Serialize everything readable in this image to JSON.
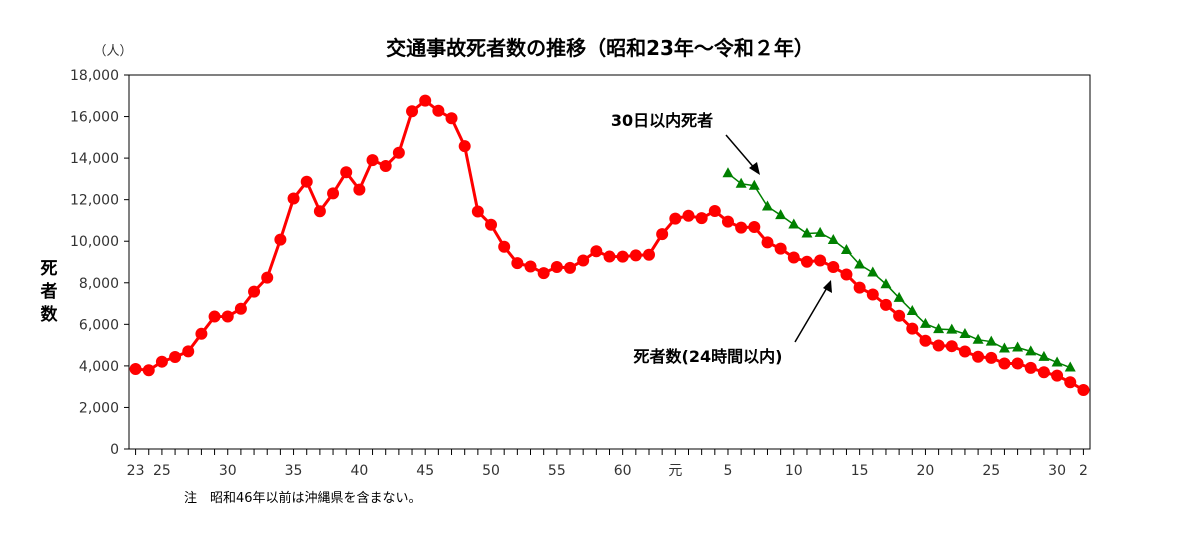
{
  "chart_data": {
    "type": "line",
    "title": "交通事故死者数の推移（昭和23年～令和２年）",
    "unit_label": "（人）",
    "ylabel": "死者数",
    "ylim": [
      0,
      18000
    ],
    "y_ticks": [
      0,
      2000,
      4000,
      6000,
      8000,
      10000,
      12000,
      14000,
      16000,
      18000
    ],
    "y_tick_labels": [
      "0",
      "2,000",
      "4,000",
      "6,000",
      "8,000",
      "10,000",
      "12,000",
      "14,000",
      "16,000",
      "18,000"
    ],
    "x_tick_labels": [
      "23",
      "25",
      "30",
      "35",
      "40",
      "45",
      "50",
      "55",
      "60",
      "元",
      "5",
      "10",
      "15",
      "20",
      "25",
      "30",
      "2"
    ],
    "grid": false,
    "note": "注　昭和46年以前は沖縄県を含まない。",
    "series": [
      {
        "name": "死者数(24時間以内)",
        "color": "#ff0000",
        "marker": "circle",
        "points": [
          [
            "昭和23年",
            3848
          ],
          [
            "昭和24年",
            3790
          ],
          [
            "昭和25年",
            4202
          ],
          [
            "昭和26年",
            4429
          ],
          [
            "昭和27年",
            4696
          ],
          [
            "昭和28年",
            5544
          ],
          [
            "昭和29年",
            6374
          ],
          [
            "昭和30年",
            6379
          ],
          [
            "昭和31年",
            6751
          ],
          [
            "昭和32年",
            7575
          ],
          [
            "昭和33年",
            8248
          ],
          [
            "昭和34年",
            10079
          ],
          [
            "昭和35年",
            12055
          ],
          [
            "昭和36年",
            12865
          ],
          [
            "昭和37年",
            11445
          ],
          [
            "昭和38年",
            12301
          ],
          [
            "昭和39年",
            13318
          ],
          [
            "昭和40年",
            12484
          ],
          [
            "昭和41年",
            13904
          ],
          [
            "昭和42年",
            13618
          ],
          [
            "昭和43年",
            14256
          ],
          [
            "昭和44年",
            16257
          ],
          [
            "昭和45年",
            16765
          ],
          [
            "昭和46年",
            16278
          ],
          [
            "昭和47年",
            15918
          ],
          [
            "昭和48年",
            14574
          ],
          [
            "昭和49年",
            11432
          ],
          [
            "昭和50年",
            10792
          ],
          [
            "昭和51年",
            9734
          ],
          [
            "昭和52年",
            8945
          ],
          [
            "昭和53年",
            8783
          ],
          [
            "昭和54年",
            8466
          ],
          [
            "昭和55年",
            8760
          ],
          [
            "昭和56年",
            8719
          ],
          [
            "昭和57年",
            9073
          ],
          [
            "昭和58年",
            9520
          ],
          [
            "昭和59年",
            9262
          ],
          [
            "昭和60年",
            9261
          ],
          [
            "昭和61年",
            9317
          ],
          [
            "昭和62年",
            9347
          ],
          [
            "昭和63年",
            10344
          ],
          [
            "平成元年",
            11086
          ],
          [
            "平成2年",
            11227
          ],
          [
            "平成3年",
            11109
          ],
          [
            "平成4年",
            11452
          ],
          [
            "平成5年",
            10945
          ],
          [
            "平成6年",
            10653
          ],
          [
            "平成7年",
            10684
          ],
          [
            "平成8年",
            9943
          ],
          [
            "平成9年",
            9642
          ],
          [
            "平成10年",
            9214
          ],
          [
            "平成11年",
            9012
          ],
          [
            "平成12年",
            9073
          ],
          [
            "平成13年",
            8757
          ],
          [
            "平成14年",
            8396
          ],
          [
            "平成15年",
            7768
          ],
          [
            "平成16年",
            7436
          ],
          [
            "平成17年",
            6937
          ],
          [
            "平成18年",
            6415
          ],
          [
            "平成19年",
            5796
          ],
          [
            "平成20年",
            5209
          ],
          [
            "平成21年",
            4979
          ],
          [
            "平成22年",
            4948
          ],
          [
            "平成23年",
            4691
          ],
          [
            "平成24年",
            4438
          ],
          [
            "平成25年",
            4388
          ],
          [
            "平成26年",
            4113
          ],
          [
            "平成27年",
            4117
          ],
          [
            "平成28年",
            3904
          ],
          [
            "平成29年",
            3694
          ],
          [
            "平成30年",
            3532
          ],
          [
            "令和元年",
            3215
          ],
          [
            "令和2年",
            2839
          ]
        ]
      },
      {
        "name": "30日以内死者",
        "color": "#008000",
        "marker": "triangle",
        "points": [
          [
            "平成5年",
            13269
          ],
          [
            "平成6年",
            12768
          ],
          [
            "平成7年",
            12670
          ],
          [
            "平成8年",
            11674
          ],
          [
            "平成9年",
            11254
          ],
          [
            "平成10年",
            10805
          ],
          [
            "平成11年",
            10372
          ],
          [
            "平成12年",
            10403
          ],
          [
            "平成13年",
            10060
          ],
          [
            "平成14年",
            9575
          ],
          [
            "平成15年",
            8877
          ],
          [
            "平成16年",
            8492
          ],
          [
            "平成17年",
            7931
          ],
          [
            "平成18年",
            7272
          ],
          [
            "平成19年",
            6639
          ],
          [
            "平成20年",
            6023
          ],
          [
            "平成21年",
            5772
          ],
          [
            "平成22年",
            5745
          ],
          [
            "平成23年",
            5535
          ],
          [
            "平成24年",
            5261
          ],
          [
            "平成25年",
            5165
          ],
          [
            "平成26年",
            4838
          ],
          [
            "平成27年",
            4885
          ],
          [
            "平成28年",
            4698
          ],
          [
            "平成29年",
            4431
          ],
          [
            "平成30年",
            4166
          ],
          [
            "令和元年",
            3920
          ]
        ]
      }
    ]
  }
}
